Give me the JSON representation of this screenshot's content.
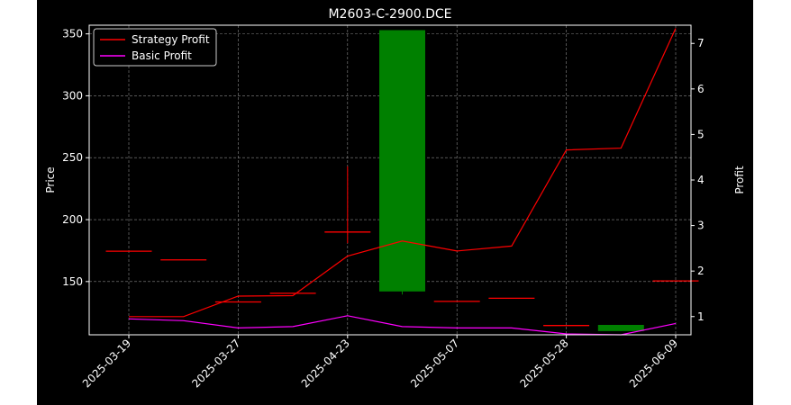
{
  "chart_data": {
    "type": "candlestick+line",
    "title": "M2603-C-2900.DCE",
    "xlabel": "",
    "ylabel_left": "Price",
    "ylabel_right": "Profit",
    "ylim_left": [
      107,
      357
    ],
    "ylim_right": [
      0.6,
      7.4
    ],
    "yticks_left": [
      150,
      200,
      250,
      300,
      350
    ],
    "yticks_right": [
      1,
      2,
      3,
      4,
      5,
      6,
      7
    ],
    "x_dates": [
      "2025-03-19",
      "2025-03-24",
      "2025-03-27",
      "2025-04-01",
      "2025-04-23",
      "2025-04-29",
      "2025-05-07",
      "2025-05-13",
      "2025-05-28",
      "2025-06-03",
      "2025-06-09"
    ],
    "x_ticks": [
      "2025-03-19",
      "2025-03-27",
      "2025-04-23",
      "2025-05-07",
      "2025-05-28",
      "2025-06-09"
    ],
    "candles": [
      {
        "date": "2025-03-19",
        "open": 174.5,
        "high": 174.5,
        "low": 174.5,
        "close": 174.5
      },
      {
        "date": "2025-03-24",
        "open": 167.5,
        "high": 167.5,
        "low": 167.5,
        "close": 167.5
      },
      {
        "date": "2025-03-27",
        "open": 133.5,
        "high": 133.5,
        "low": 133.5,
        "close": 133.5
      },
      {
        "date": "2025-04-01",
        "open": 140.5,
        "high": 141,
        "low": 140,
        "close": 140.5
      },
      {
        "date": "2025-04-23",
        "open": 190,
        "high": 243,
        "low": 181,
        "close": 190
      },
      {
        "date": "2025-04-29",
        "open": 142,
        "high": 353,
        "low": 139.5,
        "close": 353
      },
      {
        "date": "2025-05-07",
        "open": 134,
        "high": 134,
        "low": 134,
        "close": 134
      },
      {
        "date": "2025-05-13",
        "open": 136.5,
        "high": 136.5,
        "low": 136.5,
        "close": 136.5
      },
      {
        "date": "2025-05-28",
        "open": 114.5,
        "high": 114.5,
        "low": 114.5,
        "close": 114.5
      },
      {
        "date": "2025-06-03",
        "open": 110,
        "high": 115,
        "low": 110,
        "close": 115
      },
      {
        "date": "2025-06-09",
        "open": 150.5,
        "high": 150.5,
        "low": 150.5,
        "close": 150.5
      }
    ],
    "series": [
      {
        "name": "Strategy Profit",
        "color": "#ff0000",
        "values": [
          1.0,
          1.0,
          1.45,
          1.46,
          2.33,
          2.66,
          2.44,
          2.55,
          4.66,
          4.7,
          7.33
        ]
      },
      {
        "name": "Basic Profit",
        "color": "#ff00ff",
        "values": [
          0.95,
          0.91,
          0.75,
          0.78,
          1.02,
          0.78,
          0.75,
          0.75,
          0.62,
          0.6,
          0.85
        ]
      }
    ],
    "legend_position": "upper-left",
    "grid": true
  }
}
